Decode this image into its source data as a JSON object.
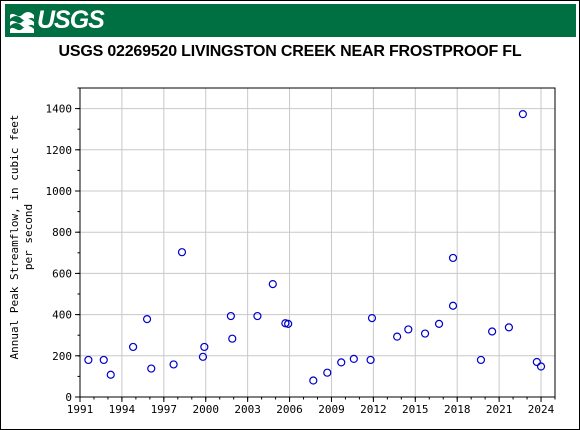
{
  "header": {
    "logo_text": "USGS",
    "brand_color": "#006f41"
  },
  "chart_data": {
    "type": "scatter",
    "title": "USGS 02269520 LIVINGSTON CREEK NEAR FROSTPROOF FL",
    "ylabel_line1": "Annual Peak Streamflow, in cubic feet",
    "ylabel_line2": "per second",
    "xlabel": "",
    "xlim": [
      1991,
      2025
    ],
    "ylim": [
      0,
      1500
    ],
    "x_ticks": [
      {
        "value": 1991,
        "label": "1991"
      },
      {
        "value": 1994,
        "label": "1994"
      },
      {
        "value": 1997,
        "label": "1997"
      },
      {
        "value": 2000,
        "label": "2000"
      },
      {
        "value": 2003,
        "label": "2003"
      },
      {
        "value": 2006,
        "label": "2006"
      },
      {
        "value": 2009,
        "label": "2009"
      },
      {
        "value": 2012,
        "label": "2012"
      },
      {
        "value": 2015,
        "label": "2015"
      },
      {
        "value": 2018,
        "label": "2018"
      },
      {
        "value": 2021,
        "label": "2021"
      },
      {
        "value": 2024,
        "label": "2024"
      }
    ],
    "y_ticks": [
      {
        "value": 0,
        "label": "0"
      },
      {
        "value": 200,
        "label": "200"
      },
      {
        "value": 400,
        "label": "400"
      },
      {
        "value": 600,
        "label": "600"
      },
      {
        "value": 800,
        "label": "800"
      },
      {
        "value": 1000,
        "label": "1000"
      },
      {
        "value": 1200,
        "label": "1200"
      },
      {
        "value": 1400,
        "label": "1400"
      }
    ],
    "grid": true,
    "marker_color": "#0000cc",
    "points": [
      {
        "x": 1991.6,
        "y": 180
      },
      {
        "x": 1992.7,
        "y": 180
      },
      {
        "x": 1993.2,
        "y": 108
      },
      {
        "x": 1994.8,
        "y": 243
      },
      {
        "x": 1995.8,
        "y": 378
      },
      {
        "x": 1996.1,
        "y": 138
      },
      {
        "x": 1997.7,
        "y": 158
      },
      {
        "x": 1998.3,
        "y": 703
      },
      {
        "x": 1999.8,
        "y": 195
      },
      {
        "x": 1999.9,
        "y": 243
      },
      {
        "x": 2001.8,
        "y": 393
      },
      {
        "x": 2001.9,
        "y": 283
      },
      {
        "x": 2003.7,
        "y": 393
      },
      {
        "x": 2004.8,
        "y": 548
      },
      {
        "x": 2005.7,
        "y": 358
      },
      {
        "x": 2005.9,
        "y": 355
      },
      {
        "x": 2007.7,
        "y": 80
      },
      {
        "x": 2008.7,
        "y": 118
      },
      {
        "x": 2009.7,
        "y": 168
      },
      {
        "x": 2010.6,
        "y": 185
      },
      {
        "x": 2011.8,
        "y": 180
      },
      {
        "x": 2011.9,
        "y": 383
      },
      {
        "x": 2013.7,
        "y": 293
      },
      {
        "x": 2014.5,
        "y": 328
      },
      {
        "x": 2015.7,
        "y": 308
      },
      {
        "x": 2016.7,
        "y": 355
      },
      {
        "x": 2017.7,
        "y": 443
      },
      {
        "x": 2017.7,
        "y": 675
      },
      {
        "x": 2019.7,
        "y": 180
      },
      {
        "x": 2020.5,
        "y": 318
      },
      {
        "x": 2021.7,
        "y": 338
      },
      {
        "x": 2022.7,
        "y": 1373
      },
      {
        "x": 2023.7,
        "y": 170
      },
      {
        "x": 2024.0,
        "y": 148
      }
    ]
  }
}
